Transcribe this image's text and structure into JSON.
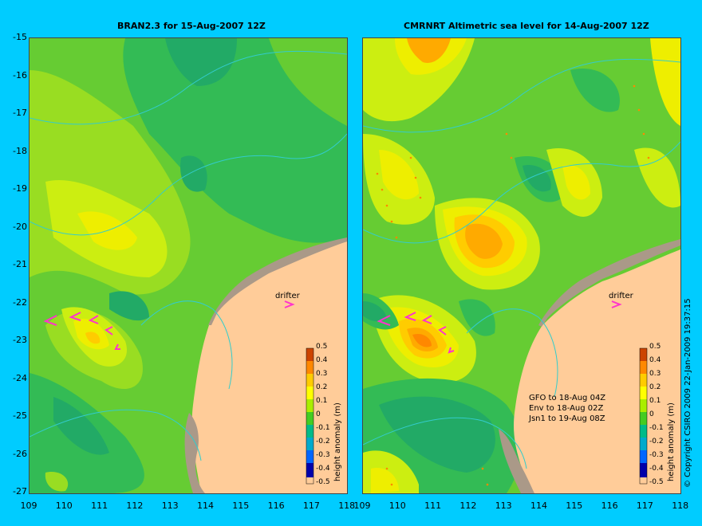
{
  "left_panel": {
    "title": "BRAN2.3 for 15-Aug-2007 12Z",
    "colorbar_title": "height anomaly (m)",
    "drifter_label": "drifter"
  },
  "right_panel": {
    "title": "CMRNRT Altimetric sea level  for 14-Aug-2007 12Z",
    "colorbar_title": "height anomaly (m)",
    "drifter_label": "drifter",
    "legend": [
      "GFO to 18-Aug 04Z",
      "Env to 18-Aug 02Z",
      "Jsn1 to 19-Aug 08Z"
    ]
  },
  "latitude_labels": [
    "-15",
    "-16",
    "-17",
    "-18",
    "-19",
    "-20",
    "-21",
    "-22",
    "-23",
    "-24",
    "-25",
    "-26",
    "-27"
  ],
  "longitude_labels": [
    "109",
    "110",
    "111",
    "112",
    "113",
    "114",
    "115",
    "116",
    "117",
    "118"
  ],
  "colorbar_labels": [
    "0.5",
    "0.4",
    "0.3",
    "0.2",
    "0.1",
    "0",
    "-0.1",
    "-0.2",
    "-0.3",
    "-0.4",
    "-0.5"
  ],
  "copyright": "© Copyright CSIRO 2009   22-Jan-2009 19:37:15",
  "colors": {
    "background": "#00ccff",
    "land": "#ffcc99",
    "coast_shelf": "#aa9988",
    "drifter_arrow": "#ff33cc",
    "contour": "#33cccc"
  }
}
